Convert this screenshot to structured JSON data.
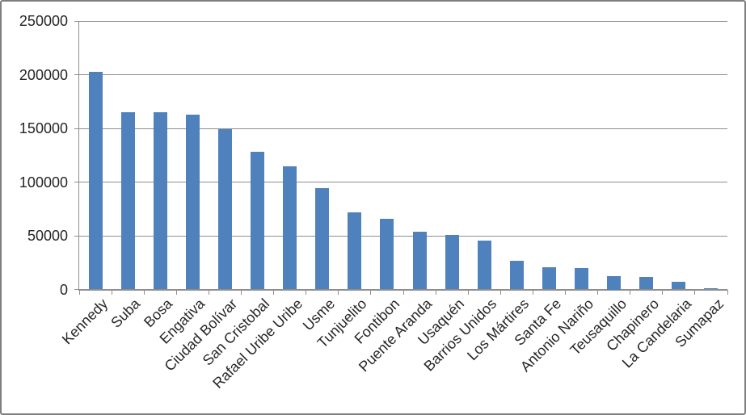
{
  "chart_data": {
    "type": "bar",
    "title": "",
    "xlabel": "",
    "ylabel": "",
    "categories": [
      "Kennedy",
      "Suba",
      "Bosa",
      "Engativa",
      "Ciudad Bolívar",
      "San Cristobal",
      "Rafael Uribe Uribe",
      "Usme",
      "Tunjuelito",
      "Fontibon",
      "Puente Aranda",
      "Usaquén",
      "Barrios Unidos",
      "Los Mártires",
      "Santa Fe",
      "Antonio Nariño",
      "Teusaquillo",
      "Chapinero",
      "La Candelaria",
      "Sumapaz"
    ],
    "values": [
      203000,
      165000,
      165000,
      163000,
      149000,
      128000,
      115000,
      94000,
      72000,
      66000,
      54000,
      51000,
      45500,
      26500,
      21000,
      20000,
      12500,
      12000,
      7500,
      1500
    ],
    "ylim": [
      0,
      250000
    ],
    "yticks": [
      0,
      50000,
      100000,
      150000,
      200000,
      250000
    ],
    "ytick_labels": [
      "0",
      "50000",
      "100000",
      "150000",
      "200000",
      "250000"
    ],
    "grid": true,
    "legend_position": "none",
    "bar_color": "#4f81bd",
    "gridline_color": "#8e8e8e",
    "axis_color": "#8e8e8e",
    "text_color": "#262626",
    "frame_border_color": "#7f7f7f",
    "background_color": "#ffffff"
  }
}
